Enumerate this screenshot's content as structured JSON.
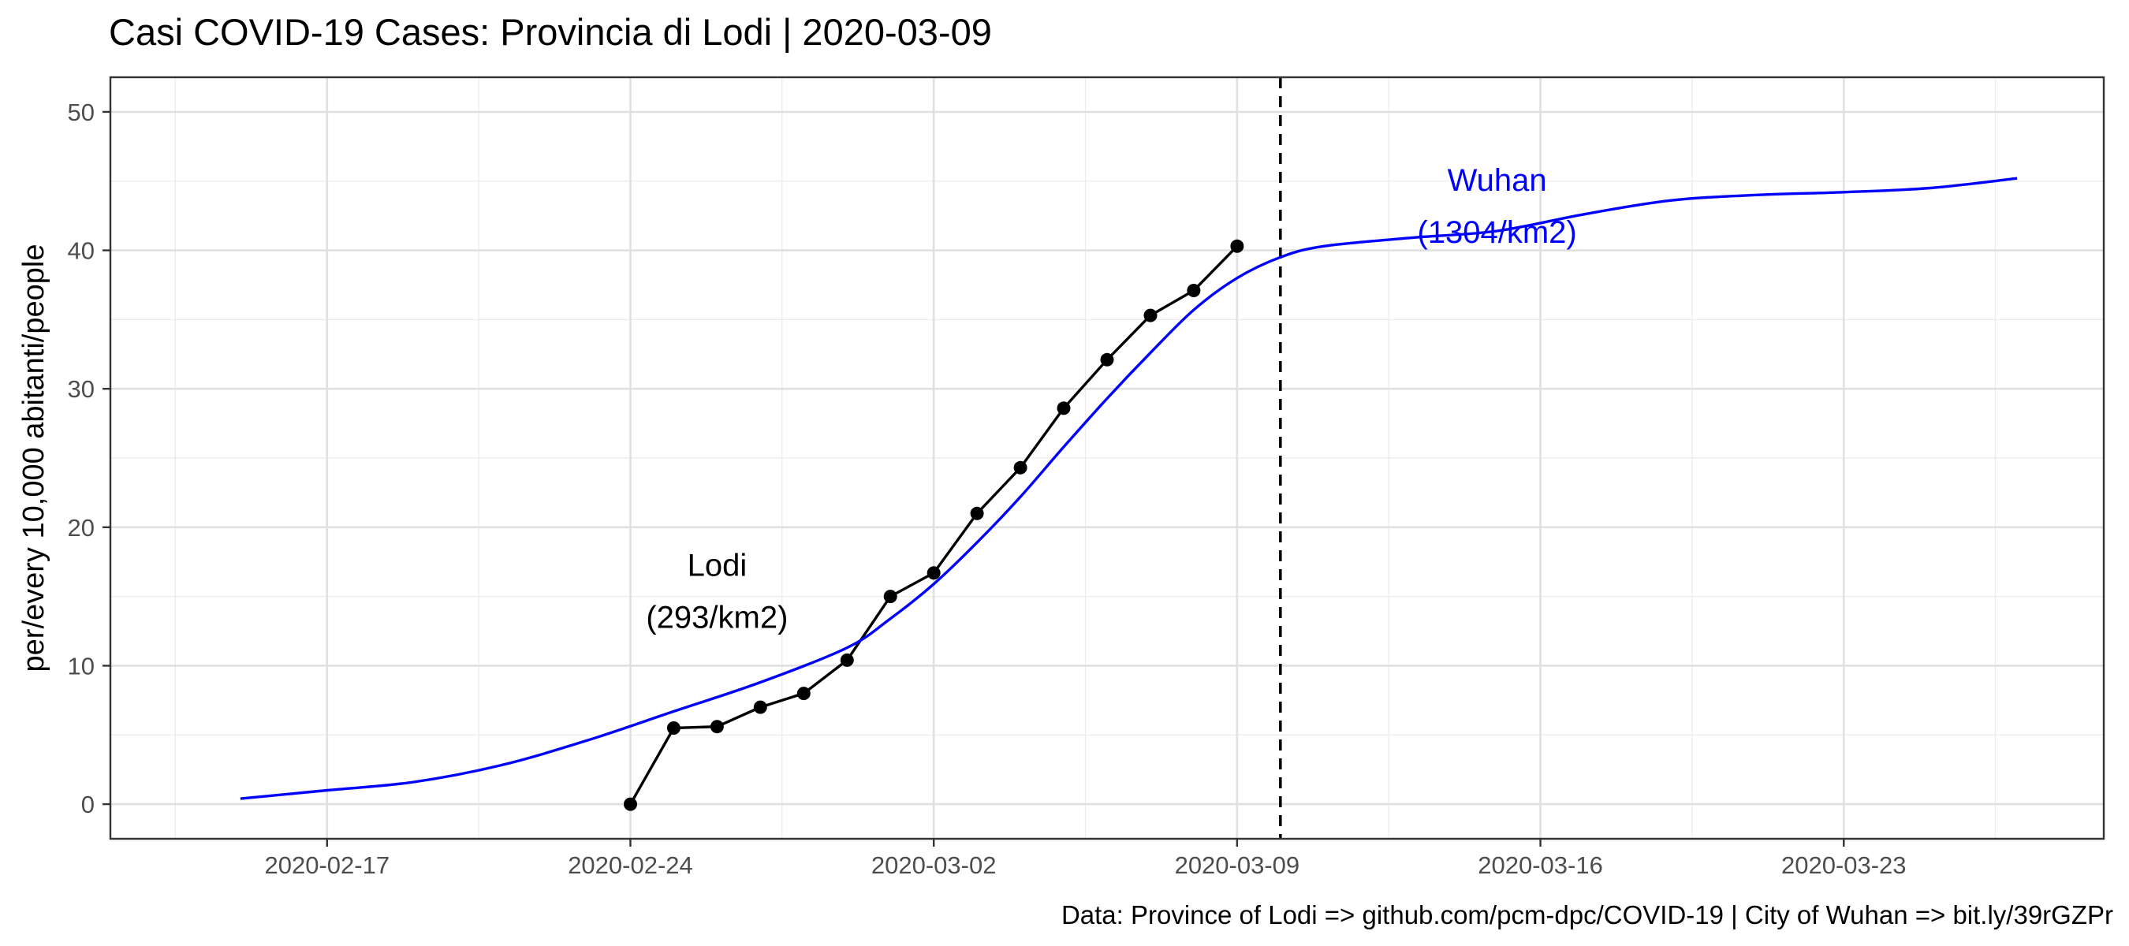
{
  "chart_data": {
    "type": "line",
    "title": "Casi COVID-19 Cases: Provincia di Lodi | 2020-03-09",
    "xlabel": "",
    "ylabel": "per/every 10,000 abitanti/people",
    "caption": "Data: Province of Lodi => github.com/pcm-dpc/COVID-19 | City of Wuhan => bit.ly/39rGZPr",
    "xlim": [
      "2020-02-12",
      "2020-03-29"
    ],
    "ylim": [
      -2.5,
      52.5
    ],
    "x_ticks": [
      "2020-02-17",
      "2020-02-24",
      "2020-03-02",
      "2020-03-09",
      "2020-03-16",
      "2020-03-23"
    ],
    "y_ticks": [
      0,
      10,
      20,
      30,
      40,
      50
    ],
    "grid": true,
    "vline": {
      "x": "2020-03-10",
      "style": "dashed",
      "color": "#000000"
    },
    "series": [
      {
        "style": "line+points",
        "color": "#000000",
        "x": [
          "2020-02-24",
          "2020-02-25",
          "2020-02-26",
          "2020-02-27",
          "2020-02-28",
          "2020-02-29",
          "2020-03-01",
          "2020-03-02",
          "2020-03-03",
          "2020-03-04",
          "2020-03-05",
          "2020-03-06",
          "2020-03-07",
          "2020-03-08",
          "2020-03-09"
        ],
        "values": [
          0,
          5.5,
          5.6,
          7.0,
          8.0,
          10.4,
          15.0,
          16.7,
          21.0,
          24.3,
          28.6,
          32.1,
          35.3,
          37.1,
          40.3
        ]
      },
      {
        "style": "line",
        "color": "#0000ff",
        "x": [
          "2020-02-15",
          "2020-02-17",
          "2020-02-19",
          "2020-02-21",
          "2020-02-23",
          "2020-02-25",
          "2020-02-27",
          "2020-02-29",
          "2020-03-01",
          "2020-03-02",
          "2020-03-03",
          "2020-03-04",
          "2020-03-05",
          "2020-03-06",
          "2020-03-07",
          "2020-03-08",
          "2020-03-09",
          "2020-03-10",
          "2020-03-11",
          "2020-03-13",
          "2020-03-15",
          "2020-03-17",
          "2020-03-19",
          "2020-03-21",
          "2020-03-23",
          "2020-03-25",
          "2020-03-27"
        ],
        "values": [
          0.4,
          1.0,
          1.6,
          2.8,
          4.6,
          6.7,
          8.8,
          11.3,
          13.4,
          15.9,
          18.9,
          22.2,
          25.8,
          29.3,
          32.6,
          35.7,
          38.0,
          39.5,
          40.3,
          40.9,
          41.4,
          42.6,
          43.6,
          44.0,
          44.2,
          44.5,
          45.2
        ]
      }
    ],
    "annotations": [
      {
        "series": 0,
        "lines": [
          "Lodi",
          "(293/km2)"
        ],
        "x": "2020-02-26",
        "y": 16.5,
        "color": "#000000"
      },
      {
        "series": 1,
        "lines": [
          "Wuhan",
          "(1304/km2)"
        ],
        "x": "2020-03-15",
        "y": 44.3,
        "color": "#0000ff"
      }
    ]
  }
}
